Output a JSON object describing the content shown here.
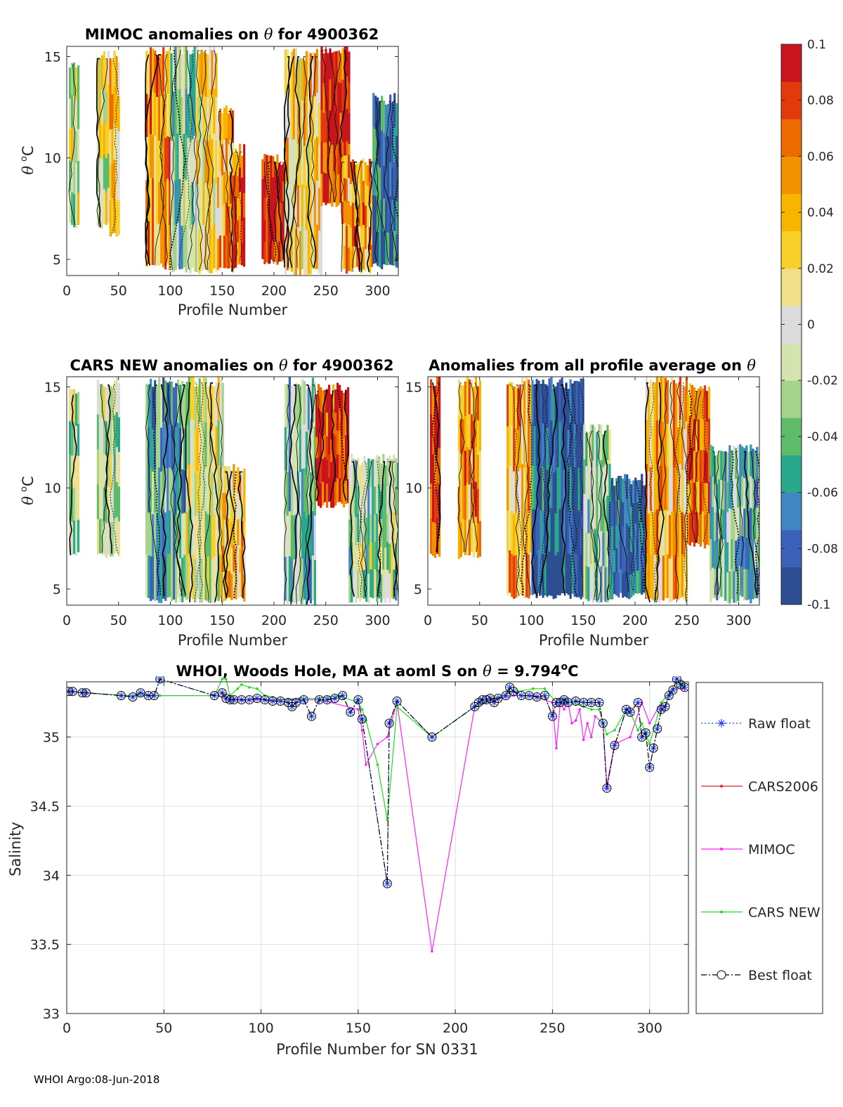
{
  "figure": {
    "footer": "WHOI Argo:08-Jun-2018"
  },
  "colorbar": {
    "min": -0.1,
    "max": 0.1,
    "tick_labels": [
      "0.1",
      "0.08",
      "0.06",
      "0.04",
      "0.02",
      "0",
      "-0.02",
      "-0.04",
      "-0.06",
      "-0.08",
      "-0.1"
    ],
    "colors": [
      "#2d4f91",
      "#3b62b8",
      "#3f86c2",
      "#2aa88b",
      "#5dbb6a",
      "#a6d38c",
      "#d5e3b0",
      "#dcdcdc",
      "#f0e08a",
      "#f7d02a",
      "#f7b500",
      "#f29200",
      "#ec6a00",
      "#e23a0b",
      "#c8141c"
    ]
  },
  "panel_mimoc": {
    "title_prefix": "MIMOC anomalies on ",
    "theta": "θ",
    "title_suffix": "  for 4900362",
    "xlabel": "Profile Number",
    "ylabel_theta": "θ",
    "ylabel_deg": "o",
    "ylabel_unit": "C"
  },
  "panel_cars": {
    "title_prefix": "CARS NEW anomalies on ",
    "theta": "θ",
    "title_suffix": " for 4900362",
    "xlabel": "Profile Number",
    "ylabel_theta": "θ",
    "ylabel_deg": "o",
    "ylabel_unit": "C"
  },
  "panel_avg": {
    "title_prefix": "Anomalies from all profile average on ",
    "theta": "θ",
    "xlabel": "Profile Number"
  },
  "anomaly_axes": {
    "x_ticks": [
      "0",
      "50",
      "100",
      "150",
      "200",
      "250",
      "300"
    ],
    "y_ticks": [
      "5",
      "10",
      "15"
    ],
    "xlim": [
      0,
      320
    ],
    "ylim": [
      4.2,
      15.5
    ]
  },
  "chart_data": [
    {
      "type": "heatmap",
      "panel": "MIMOC",
      "title": "MIMOC anomalies on θ  for 4900362",
      "xlabel": "Profile Number",
      "ylabel": "θ °C",
      "xlim": [
        0,
        320
      ],
      "ylim": [
        4.2,
        15.5
      ],
      "clim": [
        -0.1,
        0.1
      ],
      "column_blocks": [
        {
          "x0": 2,
          "x1": 11,
          "top": 14.8,
          "bottom": 6.5,
          "anomaly": -0.005
        },
        {
          "x0": 29,
          "x1": 41,
          "top": 15.1,
          "bottom": 6.5,
          "anomaly": 0.0
        },
        {
          "x0": 41,
          "x1": 50,
          "top": 15.1,
          "bottom": 6.0,
          "anomaly": 0.03
        },
        {
          "x0": 76,
          "x1": 100,
          "top": 15.3,
          "bottom": 4.5,
          "anomaly": 0.05
        },
        {
          "x0": 100,
          "x1": 125,
          "top": 15.5,
          "bottom": 4.3,
          "anomaly": -0.03
        },
        {
          "x0": 125,
          "x1": 145,
          "top": 15.5,
          "bottom": 4.3,
          "anomaly": 0.02
        },
        {
          "x0": 145,
          "x1": 160,
          "top": 12.5,
          "bottom": 4.3,
          "anomaly": 0.04
        },
        {
          "x0": 160,
          "x1": 172,
          "top": 10.5,
          "bottom": 4.5,
          "anomaly": 0.08
        },
        {
          "x0": 188,
          "x1": 210,
          "top": 10.0,
          "bottom": 4.7,
          "anomaly": 0.1
        },
        {
          "x0": 210,
          "x1": 245,
          "top": 15.2,
          "bottom": 4.2,
          "anomaly": 0.02
        },
        {
          "x0": 245,
          "x1": 272,
          "top": 15.5,
          "bottom": 7.5,
          "anomaly": 0.09
        },
        {
          "x0": 265,
          "x1": 295,
          "top": 10.0,
          "bottom": 4.3,
          "anomaly": 0.05
        },
        {
          "x0": 295,
          "x1": 320,
          "top": 13.0,
          "bottom": 4.5,
          "anomaly": -0.08
        }
      ]
    },
    {
      "type": "heatmap",
      "panel": "CARS NEW",
      "title": "CARS NEW anomalies on θ for 4900362",
      "xlabel": "Profile Number",
      "ylabel": "θ °C",
      "xlim": [
        0,
        320
      ],
      "ylim": [
        4.2,
        15.5
      ],
      "clim": [
        -0.1,
        0.1
      ],
      "column_blocks": [
        {
          "x0": 2,
          "x1": 11,
          "top": 14.8,
          "bottom": 6.5,
          "anomaly": -0.01
        },
        {
          "x0": 29,
          "x1": 50,
          "top": 15.3,
          "bottom": 6.5,
          "anomaly": -0.01
        },
        {
          "x0": 76,
          "x1": 115,
          "top": 15.3,
          "bottom": 4.3,
          "anomaly": -0.05
        },
        {
          "x0": 115,
          "x1": 150,
          "top": 15.4,
          "bottom": 4.3,
          "anomaly": 0.0
        },
        {
          "x0": 150,
          "x1": 172,
          "top": 11.0,
          "bottom": 4.3,
          "anomaly": 0.03
        },
        {
          "x0": 210,
          "x1": 240,
          "top": 15.3,
          "bottom": 4.2,
          "anomaly": -0.04
        },
        {
          "x0": 240,
          "x1": 272,
          "top": 15.0,
          "bottom": 9.0,
          "anomaly": 0.09
        },
        {
          "x0": 272,
          "x1": 320,
          "top": 11.5,
          "bottom": 4.3,
          "anomaly": -0.02
        }
      ]
    },
    {
      "type": "heatmap",
      "panel": "All-profile average",
      "title": "Anomalies from all profile average on θ",
      "xlabel": "Profile Number",
      "ylabel": "",
      "xlim": [
        0,
        320
      ],
      "ylim": [
        4.2,
        15.5
      ],
      "clim": [
        -0.1,
        0.1
      ],
      "column_blocks": [
        {
          "x0": 2,
          "x1": 12,
          "top": 15.4,
          "bottom": 6.5,
          "anomaly": 0.09
        },
        {
          "x0": 29,
          "x1": 50,
          "top": 15.4,
          "bottom": 6.5,
          "anomaly": 0.05
        },
        {
          "x0": 76,
          "x1": 100,
          "top": 15.3,
          "bottom": 4.5,
          "anomaly": 0.04
        },
        {
          "x0": 100,
          "x1": 150,
          "top": 15.3,
          "bottom": 4.5,
          "anomaly": -0.09
        },
        {
          "x0": 150,
          "x1": 175,
          "top": 13.0,
          "bottom": 4.3,
          "anomaly": -0.03
        },
        {
          "x0": 175,
          "x1": 210,
          "top": 10.5,
          "bottom": 4.5,
          "anomaly": -0.09
        },
        {
          "x0": 210,
          "x1": 250,
          "top": 15.4,
          "bottom": 4.3,
          "anomaly": 0.04
        },
        {
          "x0": 250,
          "x1": 272,
          "top": 15.0,
          "bottom": 7.0,
          "anomaly": 0.07
        },
        {
          "x0": 272,
          "x1": 320,
          "top": 12.0,
          "bottom": 4.3,
          "anomaly": -0.04
        }
      ]
    },
    {
      "type": "line",
      "title": "WHOI, Woods Hole, MA at aoml S on θ = 9.794°C",
      "title_prefix": "WHOI, Woods Hole, MA at aoml S on ",
      "title_theta": "θ",
      "title_value": " = 9.794",
      "title_deg": "o",
      "title_unit": "C",
      "xlabel": "Profile Number for SN 0331",
      "ylabel": "Salinity",
      "xlim": [
        0,
        320
      ],
      "ylim": [
        33,
        35.4
      ],
      "x_ticks": [
        "0",
        "50",
        "100",
        "150",
        "200",
        "250",
        "300"
      ],
      "y_ticks": [
        "33",
        "33.5",
        "34",
        "34.5",
        "35"
      ],
      "grid": true,
      "legend_position": "outside-right",
      "series": [
        {
          "name": "Raw float",
          "color": "#1f3fff",
          "style": "dotted",
          "marker": "star",
          "x": [
            1,
            3,
            8,
            10,
            28,
            34,
            38,
            42,
            45,
            48,
            76,
            80,
            82,
            84,
            86,
            90,
            94,
            98,
            102,
            106,
            110,
            114,
            116,
            118,
            122,
            126,
            130,
            134,
            138,
            142,
            146,
            150,
            152,
            165,
            166,
            170,
            188,
            210,
            212,
            214,
            216,
            218,
            220,
            222,
            226,
            228,
            230,
            234,
            238,
            242,
            246,
            250,
            252,
            254,
            256,
            258,
            262,
            266,
            270,
            274,
            276,
            278,
            282,
            288,
            290,
            294,
            296,
            298,
            300,
            302,
            304,
            306,
            308,
            310,
            312,
            314,
            316,
            318
          ],
          "y": [
            35.33,
            35.33,
            35.32,
            35.32,
            35.3,
            35.29,
            35.32,
            35.3,
            35.3,
            35.42,
            35.3,
            35.32,
            35.28,
            35.27,
            35.27,
            35.27,
            35.27,
            35.28,
            35.27,
            35.26,
            35.26,
            35.25,
            35.22,
            35.25,
            35.27,
            35.15,
            35.27,
            35.27,
            35.28,
            35.3,
            35.18,
            35.27,
            35.13,
            33.94,
            35.1,
            35.26,
            35.0,
            35.22,
            35.25,
            35.27,
            35.27,
            35.28,
            35.25,
            35.28,
            35.3,
            35.36,
            35.33,
            35.3,
            35.3,
            35.29,
            35.3,
            35.15,
            35.25,
            35.25,
            35.27,
            35.25,
            35.26,
            35.25,
            35.25,
            35.25,
            35.1,
            34.63,
            34.94,
            35.2,
            35.18,
            35.25,
            35.0,
            35.03,
            34.78,
            34.92,
            35.06,
            35.2,
            35.22,
            35.3,
            35.34,
            35.42,
            35.38,
            35.36
          ]
        },
        {
          "name": "CARS2006",
          "color": "#d62728",
          "style": "solid",
          "marker": "dot",
          "x": [],
          "y": []
        },
        {
          "name": "MIMOC",
          "color": "#ff22ff",
          "style": "solid",
          "marker": "dot",
          "x": [
            1,
            10,
            30,
            48,
            76,
            90,
            110,
            130,
            150,
            152,
            154,
            160,
            165,
            170,
            188,
            210,
            220,
            230,
            240,
            250,
            252,
            254,
            256,
            258,
            260,
            262,
            264,
            266,
            268,
            270,
            272,
            276,
            278,
            282,
            290,
            296,
            300,
            306,
            312,
            318
          ],
          "y": [
            35.33,
            35.32,
            35.3,
            35.3,
            35.3,
            35.27,
            35.27,
            35.27,
            35.2,
            35.05,
            34.8,
            34.95,
            35.0,
            35.25,
            33.45,
            35.22,
            35.27,
            35.3,
            35.3,
            35.25,
            34.92,
            35.25,
            35.2,
            35.25,
            35.1,
            35.12,
            35.2,
            34.98,
            35.1,
            35.0,
            35.15,
            35.1,
            34.65,
            34.95,
            35.0,
            35.25,
            35.1,
            35.25,
            35.35,
            35.35
          ]
        },
        {
          "name": "CARS NEW",
          "color": "#22dd22",
          "style": "solid",
          "marker": "dot",
          "x": [
            1,
            10,
            30,
            48,
            76,
            80,
            82,
            84,
            88,
            90,
            94,
            98,
            102,
            106,
            110,
            120,
            130,
            140,
            150,
            152,
            154,
            160,
            165,
            170,
            188,
            210,
            220,
            228,
            232,
            240,
            246,
            252,
            256,
            260,
            266,
            270,
            274,
            276,
            278,
            282,
            288,
            290,
            294,
            296,
            300,
            306,
            312,
            318
          ],
          "y": [
            35.33,
            35.32,
            35.3,
            35.3,
            35.3,
            35.42,
            35.42,
            35.3,
            35.35,
            35.38,
            35.36,
            35.35,
            35.3,
            35.29,
            35.27,
            35.28,
            35.28,
            35.3,
            35.25,
            35.2,
            35.12,
            34.8,
            34.4,
            35.22,
            35.0,
            35.22,
            35.28,
            35.32,
            35.33,
            35.35,
            35.35,
            35.25,
            35.25,
            35.25,
            35.22,
            35.2,
            35.2,
            35.1,
            35.02,
            35.05,
            35.2,
            35.18,
            35.05,
            35.1,
            34.95,
            35.25,
            35.35,
            35.37
          ]
        },
        {
          "name": "Best float",
          "color": "#000000",
          "style": "dashdot",
          "marker": "circle",
          "x": [
            1,
            3,
            8,
            10,
            28,
            34,
            38,
            42,
            45,
            48,
            76,
            80,
            82,
            84,
            86,
            90,
            94,
            98,
            102,
            106,
            110,
            114,
            116,
            118,
            122,
            126,
            130,
            134,
            138,
            142,
            146,
            150,
            152,
            165,
            166,
            170,
            188,
            210,
            212,
            214,
            216,
            218,
            220,
            222,
            226,
            228,
            230,
            234,
            238,
            242,
            246,
            250,
            252,
            254,
            256,
            258,
            262,
            266,
            270,
            274,
            276,
            278,
            282,
            288,
            290,
            294,
            296,
            298,
            300,
            302,
            304,
            306,
            308,
            310,
            312,
            314,
            316,
            318
          ],
          "y": [
            35.33,
            35.33,
            35.32,
            35.32,
            35.3,
            35.29,
            35.32,
            35.3,
            35.3,
            35.42,
            35.3,
            35.32,
            35.28,
            35.27,
            35.27,
            35.27,
            35.27,
            35.28,
            35.27,
            35.26,
            35.26,
            35.25,
            35.22,
            35.25,
            35.27,
            35.15,
            35.27,
            35.27,
            35.28,
            35.3,
            35.18,
            35.27,
            35.13,
            33.94,
            35.1,
            35.26,
            35.0,
            35.22,
            35.25,
            35.27,
            35.27,
            35.28,
            35.25,
            35.28,
            35.3,
            35.36,
            35.33,
            35.3,
            35.3,
            35.29,
            35.3,
            35.15,
            35.25,
            35.25,
            35.27,
            35.25,
            35.26,
            35.25,
            35.25,
            35.25,
            35.1,
            34.63,
            34.94,
            35.2,
            35.18,
            35.25,
            35.0,
            35.03,
            34.78,
            34.92,
            35.06,
            35.2,
            35.22,
            35.3,
            35.34,
            35.42,
            35.38,
            35.36
          ]
        }
      ]
    }
  ]
}
